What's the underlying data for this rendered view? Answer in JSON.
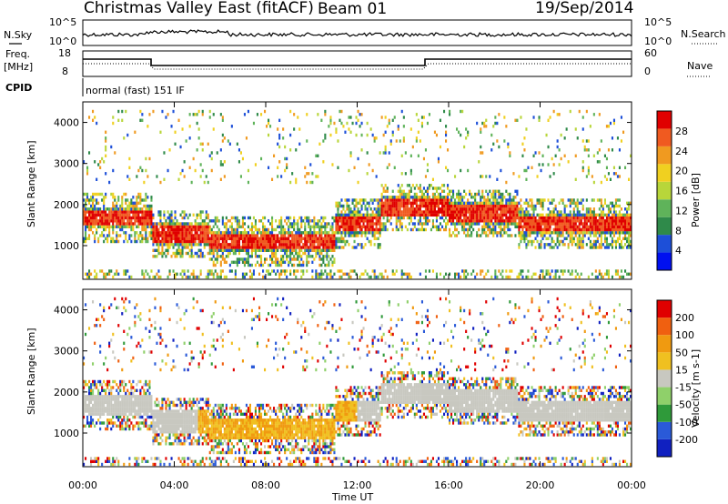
{
  "header": {
    "station": "Christmas Valley East (fitACF)",
    "beam": "Beam 01",
    "date": "19/Sep/2014"
  },
  "strip": {
    "nsky_label": "N.Sky",
    "nsearch_label": "N.Search",
    "log_ticks": [
      "10^5",
      "10^0"
    ],
    "freq_label": "Freq.",
    "freq_unit": "[MHz]",
    "freq_ticks": [
      "18",
      "8"
    ],
    "nave_label": "Nave",
    "nave_ticks": [
      "60",
      "0"
    ],
    "cpid_label": "CPID",
    "cpid_value": "normal (fast) 151 IF"
  },
  "chart_data": [
    {
      "type": "heatmap",
      "name": "power",
      "ylabel": "Slant Range [km]",
      "ylim": [
        180,
        4500
      ],
      "xlim": [
        0,
        24
      ],
      "y_ticks": [
        "4000",
        "3000",
        "2000",
        "1000"
      ],
      "colorbar": {
        "label": "Power [dB]",
        "ticks": [
          "28",
          "24",
          "20",
          "16",
          "12",
          "8",
          "4"
        ],
        "colors": [
          "#0010f0",
          "#1d4fd8",
          "#2f8a4a",
          "#5fb35a",
          "#b8d63a",
          "#f0d020",
          "#f09a20",
          "#f05a20",
          "#e00000"
        ]
      }
    },
    {
      "type": "heatmap",
      "name": "velocity",
      "ylabel": "Slant Range [km]",
      "ylim": [
        180,
        4500
      ],
      "xlim": [
        0,
        24
      ],
      "y_ticks": [
        "4000",
        "3000",
        "2000",
        "1000"
      ],
      "colorbar": {
        "label": "Velocity [m s-1]",
        "ticks": [
          "200",
          "100",
          "50",
          "15",
          "-15",
          "-50",
          "-100",
          "-200"
        ],
        "colors": [
          "#1020c0",
          "#2a5ad8",
          "#2f9a3a",
          "#8fd06a",
          "#c8c8c0",
          "#f0c020",
          "#f09a10",
          "#f06010",
          "#e00000"
        ]
      }
    }
  ],
  "xaxis": {
    "label": "Time UT",
    "ticks": [
      "00:00",
      "04:00",
      "08:00",
      "12:00",
      "16:00",
      "20:00",
      "00:00"
    ]
  }
}
